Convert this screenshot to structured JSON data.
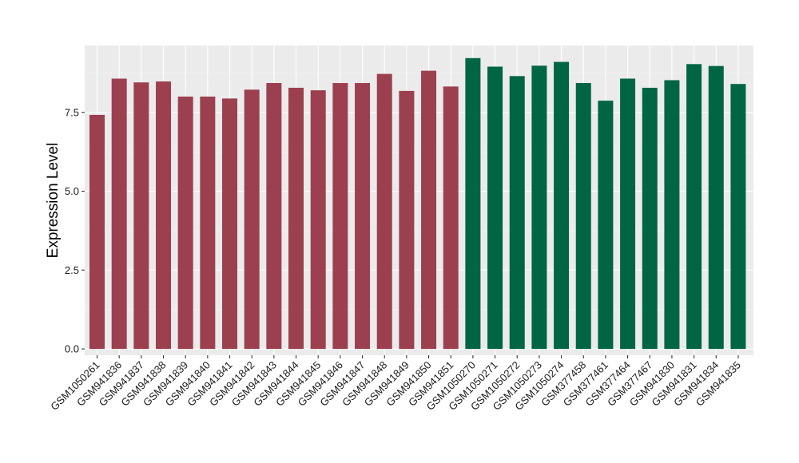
{
  "chart_data": {
    "type": "bar",
    "title": "",
    "xlabel": "",
    "ylabel": "Expression Level",
    "ylim": [
      -0.2,
      9.62
    ],
    "yticks": [
      0.0,
      2.5,
      5.0,
      7.5
    ],
    "ytick_labels": [
      "0.0",
      "2.5",
      "5.0",
      "7.5"
    ],
    "grid": true,
    "categories": [
      "GSM1050261",
      "GSM941836",
      "GSM941837",
      "GSM941838",
      "GSM941839",
      "GSM941840",
      "GSM941841",
      "GSM941842",
      "GSM941843",
      "GSM941844",
      "GSM941845",
      "GSM941846",
      "GSM941847",
      "GSM941848",
      "GSM941849",
      "GSM941850",
      "GSM941851",
      "GSM1050270",
      "GSM1050271",
      "GSM1050272",
      "GSM1050273",
      "GSM1050274",
      "GSM377458",
      "GSM377461",
      "GSM377464",
      "GSM377467",
      "GSM941830",
      "GSM941831",
      "GSM941834",
      "GSM941835"
    ],
    "values": [
      7.42,
      8.57,
      8.45,
      8.48,
      8.0,
      8.0,
      7.94,
      8.22,
      8.43,
      8.28,
      8.2,
      8.43,
      8.43,
      8.72,
      8.18,
      8.82,
      8.32,
      9.22,
      8.95,
      8.65,
      8.98,
      9.1,
      8.43,
      7.87,
      8.57,
      8.28,
      8.52,
      9.03,
      8.97,
      8.4
    ],
    "group_sizes": [
      17,
      13
    ],
    "colors": [
      "#9c404f",
      "#006543"
    ]
  }
}
